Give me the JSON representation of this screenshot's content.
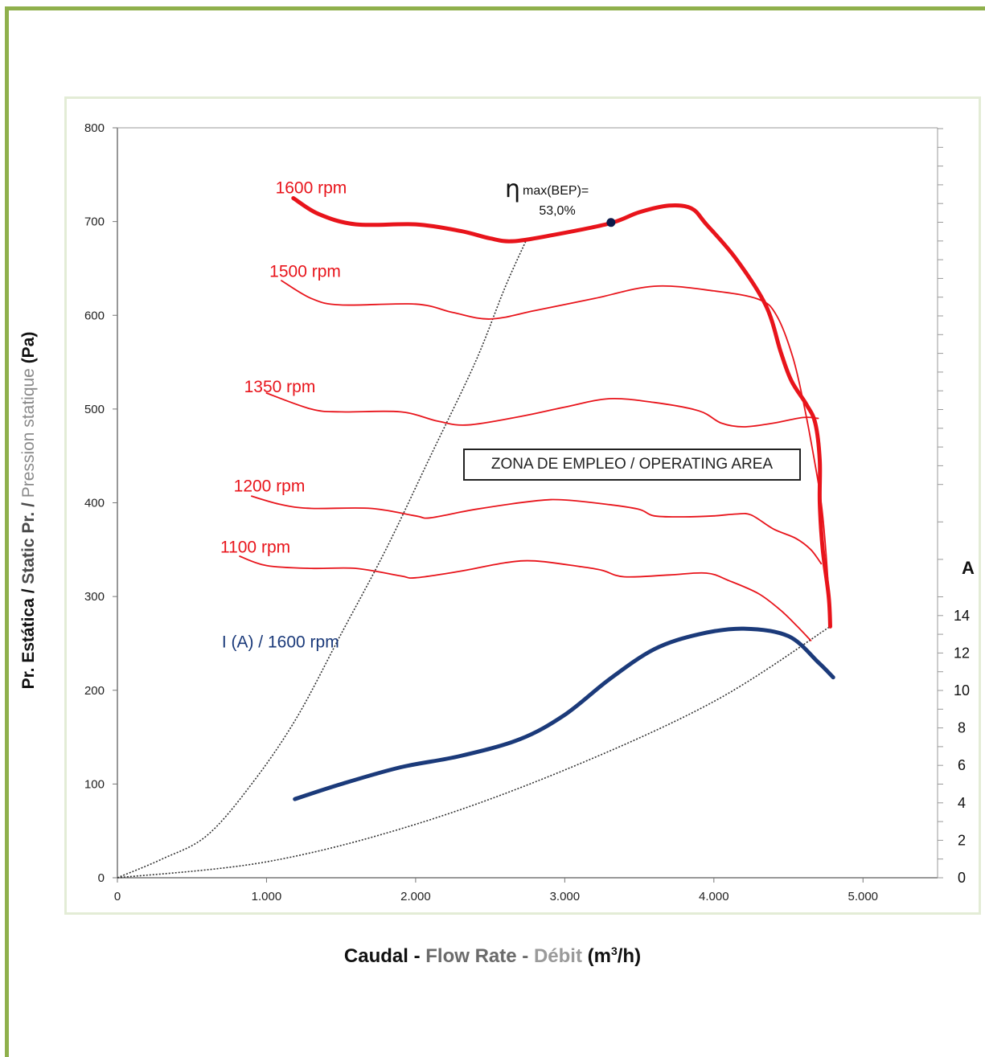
{
  "chart_data": {
    "type": "line",
    "xlabel": {
      "part1": "Caudal - ",
      "part2": "Flow Rate - ",
      "part3": "Débit",
      "unit_pre": " (m",
      "unit_sup": "3",
      "unit_post": "/h)"
    },
    "ylabel": {
      "part1": "Pr. Estática / ",
      "part2": "Static Pr. / ",
      "part3": "Pression statique",
      "unit": " (Pa)"
    },
    "y2label": "A",
    "xlim": [
      0,
      5500
    ],
    "ylim": [
      0,
      800
    ],
    "y2lim": [
      0,
      16
    ],
    "x_ticks": [
      {
        "value": 0,
        "label": "0"
      },
      {
        "value": 1000,
        "label": "1.000"
      },
      {
        "value": 2000,
        "label": "2.000"
      },
      {
        "value": 3000,
        "label": "3.000"
      },
      {
        "value": 4000,
        "label": "4.000"
      },
      {
        "value": 5000,
        "label": "5.000"
      }
    ],
    "y_ticks": [
      {
        "value": 0,
        "label": "0"
      },
      {
        "value": 100,
        "label": "100"
      },
      {
        "value": 200,
        "label": "200"
      },
      {
        "value": 300,
        "label": "300"
      },
      {
        "value": 400,
        "label": "400"
      },
      {
        "value": 500,
        "label": "500"
      },
      {
        "value": 600,
        "label": "600"
      },
      {
        "value": 700,
        "label": "700"
      },
      {
        "value": 800,
        "label": "800"
      }
    ],
    "y2_ticks": [
      {
        "value": 0,
        "label": "0"
      },
      {
        "value": 2,
        "label": "2"
      },
      {
        "value": 4,
        "label": "4"
      },
      {
        "value": 6,
        "label": "6"
      },
      {
        "value": 8,
        "label": "8"
      },
      {
        "value": 10,
        "label": "10"
      },
      {
        "value": 12,
        "label": "12"
      },
      {
        "value": 14,
        "label": "14"
      }
    ],
    "y2_minor_values": [
      1,
      3,
      5,
      7,
      9,
      11,
      13,
      15,
      17,
      19,
      21,
      22,
      23,
      24,
      25,
      26,
      27,
      28,
      29,
      30,
      31,
      32,
      33,
      34,
      35,
      36,
      37,
      38,
      39,
      40
    ],
    "series": [
      {
        "name": "1600 rpm",
        "color": "#e8141b",
        "width": 5,
        "axis": "left",
        "points": [
          [
            1180,
            725
          ],
          [
            1350,
            708
          ],
          [
            1600,
            697
          ],
          [
            2000,
            697
          ],
          [
            2300,
            690
          ],
          [
            2500,
            682
          ],
          [
            2650,
            679
          ],
          [
            2900,
            685
          ],
          [
            3300,
            698
          ],
          [
            3500,
            710
          ],
          [
            3700,
            717
          ],
          [
            3850,
            714
          ],
          [
            3950,
            697
          ],
          [
            4150,
            660
          ],
          [
            4350,
            610
          ],
          [
            4450,
            560
          ],
          [
            4520,
            530
          ],
          [
            4620,
            505
          ],
          [
            4680,
            485
          ],
          [
            4710,
            445
          ],
          [
            4710,
            400
          ],
          [
            4730,
            350
          ],
          [
            4770,
            300
          ],
          [
            4780,
            268
          ]
        ],
        "label": {
          "text": "1600 rpm",
          "x": 1060,
          "y": 730
        }
      },
      {
        "name": "1500 rpm",
        "color": "#e8141b",
        "width": 1.8,
        "axis": "left",
        "points": [
          [
            1100,
            637
          ],
          [
            1300,
            618
          ],
          [
            1500,
            611
          ],
          [
            2000,
            612
          ],
          [
            2250,
            603
          ],
          [
            2500,
            596
          ],
          [
            2800,
            605
          ],
          [
            3200,
            618
          ],
          [
            3600,
            631
          ],
          [
            4000,
            626
          ],
          [
            4300,
            617
          ],
          [
            4420,
            600
          ],
          [
            4530,
            555
          ],
          [
            4610,
            500
          ],
          [
            4680,
            440
          ],
          [
            4720,
            400
          ],
          [
            4750,
            350
          ],
          [
            4780,
            280
          ]
        ],
        "label": {
          "text": "1500 rpm",
          "x": 1020,
          "y": 641
        }
      },
      {
        "name": "1350 rpm",
        "color": "#e8141b",
        "width": 1.8,
        "axis": "left",
        "points": [
          [
            1000,
            517
          ],
          [
            1300,
            500
          ],
          [
            1500,
            497
          ],
          [
            1900,
            497
          ],
          [
            2150,
            487
          ],
          [
            2350,
            483
          ],
          [
            2700,
            492
          ],
          [
            3000,
            502
          ],
          [
            3300,
            511
          ],
          [
            3600,
            507
          ],
          [
            3900,
            498
          ],
          [
            4050,
            485
          ],
          [
            4200,
            481
          ],
          [
            4400,
            485
          ],
          [
            4600,
            491
          ],
          [
            4700,
            490
          ]
        ],
        "label": {
          "text": "1350 rpm",
          "x": 850,
          "y": 518
        }
      },
      {
        "name": "1200 rpm",
        "color": "#e8141b",
        "width": 1.8,
        "axis": "left",
        "points": [
          [
            900,
            407
          ],
          [
            1100,
            398
          ],
          [
            1300,
            394
          ],
          [
            1700,
            394
          ],
          [
            2000,
            386
          ],
          [
            2100,
            384
          ],
          [
            2400,
            393
          ],
          [
            2800,
            402
          ],
          [
            3000,
            403
          ],
          [
            3300,
            398
          ],
          [
            3500,
            393
          ],
          [
            3600,
            386
          ],
          [
            3800,
            385
          ],
          [
            4000,
            386
          ],
          [
            4150,
            388
          ],
          [
            4250,
            387
          ],
          [
            4400,
            372
          ],
          [
            4550,
            362
          ],
          [
            4650,
            350
          ],
          [
            4720,
            335
          ]
        ],
        "label": {
          "text": "1200 rpm",
          "x": 780,
          "y": 412
        }
      },
      {
        "name": "1100 rpm",
        "color": "#e8141b",
        "width": 1.8,
        "axis": "left",
        "points": [
          [
            820,
            343
          ],
          [
            1000,
            333
          ],
          [
            1300,
            330
          ],
          [
            1600,
            330
          ],
          [
            1900,
            322
          ],
          [
            2000,
            320
          ],
          [
            2300,
            327
          ],
          [
            2600,
            336
          ],
          [
            2800,
            338
          ],
          [
            3100,
            332
          ],
          [
            3250,
            328
          ],
          [
            3400,
            321
          ],
          [
            3700,
            323
          ],
          [
            3950,
            325
          ],
          [
            4100,
            317
          ],
          [
            4300,
            303
          ],
          [
            4450,
            285
          ],
          [
            4560,
            268
          ],
          [
            4650,
            253
          ]
        ],
        "label": {
          "text": "1100 rpm",
          "x": 690,
          "y": 347
        }
      },
      {
        "name": "I (A) / 1600 rpm",
        "color": "#1b3a7a",
        "width": 5,
        "axis": "right",
        "points": [
          [
            1190,
            4.2
          ],
          [
            1500,
            5.0
          ],
          [
            1900,
            5.9
          ],
          [
            2300,
            6.5
          ],
          [
            2700,
            7.4
          ],
          [
            3000,
            8.7
          ],
          [
            3300,
            10.6
          ],
          [
            3600,
            12.2
          ],
          [
            3900,
            13.0
          ],
          [
            4200,
            13.3
          ],
          [
            4500,
            12.9
          ],
          [
            4700,
            11.5
          ],
          [
            4800,
            10.7
          ]
        ],
        "label": {
          "text": "I (A) / 1600 rpm",
          "x": 700,
          "y": 123
        }
      }
    ],
    "system_curves": [
      {
        "color": "#333333",
        "points": [
          [
            0,
            0
          ],
          [
            300,
            20
          ],
          [
            600,
            45
          ],
          [
            900,
            100
          ],
          [
            1200,
            170
          ],
          [
            1500,
            260
          ],
          [
            1800,
            350
          ],
          [
            2100,
            450
          ],
          [
            2400,
            550
          ],
          [
            2600,
            630
          ],
          [
            2750,
            683
          ]
        ]
      },
      {
        "color": "#333333",
        "points": [
          [
            0,
            0
          ],
          [
            1000,
            17
          ],
          [
            2000,
            57
          ],
          [
            3000,
            115
          ],
          [
            4000,
            188
          ],
          [
            4780,
            268
          ]
        ]
      }
    ],
    "bep": {
      "label": "η",
      "sub": "max(BEP)=",
      "value": "53,0%",
      "x": 3310,
      "y": 699
    },
    "annotation": "ZONA DE EMPLEO / OPERATING AREA"
  }
}
